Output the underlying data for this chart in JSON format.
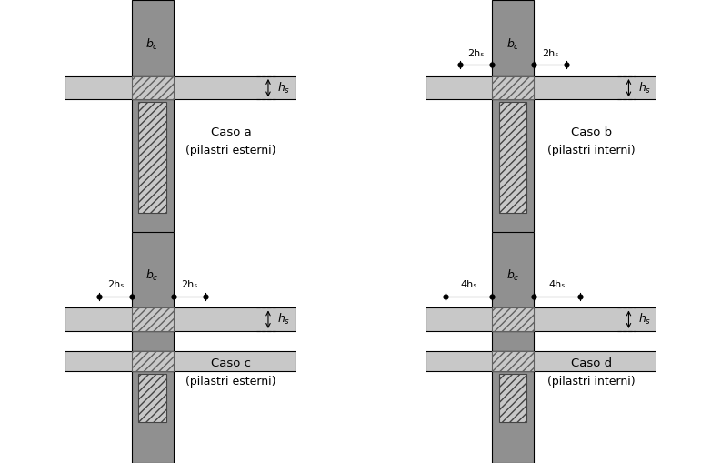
{
  "fig_width": 7.93,
  "fig_height": 5.09,
  "bg_color": "#ffffff",
  "dark_gray": "#909090",
  "light_gray": "#c8c8c8",
  "black": "#000000",
  "hatch_color": "#606060",
  "cases": [
    {
      "label": "Caso a",
      "sublabel": "(pilastri esterni)",
      "left_dim": "",
      "right_dim": "",
      "slab_left": false,
      "slab_right": true,
      "lower_slab": false,
      "lower_slab_left": false,
      "lower_slab_right": false
    },
    {
      "label": "Caso b",
      "sublabel": "(pilastri interni)",
      "left_dim": "2hₛ",
      "right_dim": "2hₛ",
      "slab_left": true,
      "slab_right": true,
      "lower_slab": false,
      "lower_slab_left": false,
      "lower_slab_right": false
    },
    {
      "label": "Caso c",
      "sublabel": "(pilastri esterni)",
      "left_dim": "2hₛ",
      "right_dim": "2hₛ",
      "slab_left": true,
      "slab_right": true,
      "lower_slab": true,
      "lower_slab_left": true,
      "lower_slab_right": true
    },
    {
      "label": "Caso d",
      "sublabel": "(pilastri interni)",
      "left_dim": "4hₛ",
      "right_dim": "4hₛ",
      "slab_left": true,
      "slab_right": true,
      "lower_slab": true,
      "lower_slab_left": true,
      "lower_slab_right": true
    }
  ]
}
